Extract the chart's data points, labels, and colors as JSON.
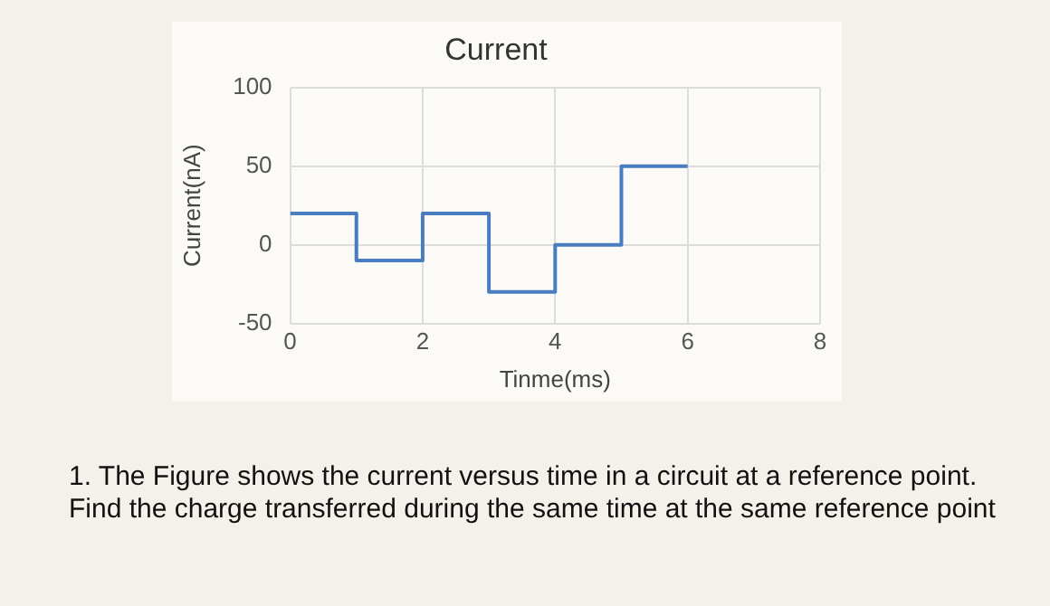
{
  "chart_data": {
    "type": "step",
    "title": "Current",
    "xlabel": "Tinme(ms)",
    "ylabel": "Current(nA)",
    "x": [
      0,
      1,
      2,
      3,
      4,
      5,
      6
    ],
    "series": [
      {
        "color": "#4a7cc0",
        "values": [
          20,
          -10,
          20,
          -30,
          0,
          50,
          50
        ]
      }
    ],
    "xlim": [
      0,
      8
    ],
    "xticks": [
      0,
      2,
      4,
      6,
      8
    ],
    "ylim": [
      -50,
      100
    ],
    "yticks": [
      -50,
      0,
      50,
      100
    ],
    "grid": true,
    "legend": false,
    "marker": "none",
    "line_style": "solid",
    "annotations": [
      "1. The Figure shows the current versus time in a circuit at a reference point. Find the charge transferred during the same time at the same reference point"
    ]
  }
}
